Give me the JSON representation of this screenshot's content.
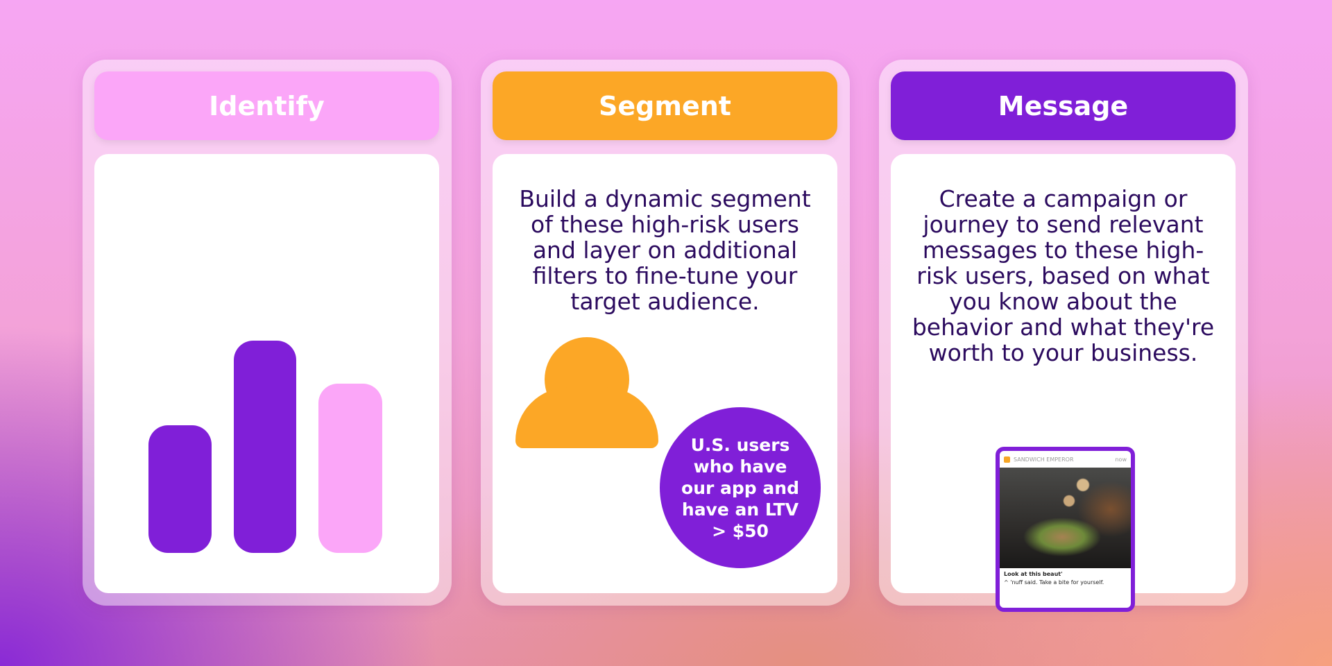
{
  "colors": {
    "pink": "#fba6f8",
    "orange": "#fca726",
    "purple": "#801fd8",
    "text": "#2b0a5e"
  },
  "cards": [
    {
      "title": "Identify",
      "chart_data": {
        "type": "bar",
        "values": [
          2,
          3,
          2.4
        ],
        "colors": [
          "#801fd8",
          "#801fd8",
          "#fba6f8"
        ]
      }
    },
    {
      "title": "Segment",
      "description": "Build a dynamic segment of these high-risk users and layer on additional filters to fine-tune your target audience.",
      "icon": "person-icon",
      "bubble": "U.S. users who have our app and have an LTV > $50"
    },
    {
      "title": "Message",
      "description": "Create a campaign or journey to send relevant messages to these high-risk users, based on what you know about the behavior and what they're worth to your business.",
      "notification": {
        "app": "SANDWICH EMPEROR",
        "time": "now",
        "title": "Look at this beaut'",
        "body": "^ 'nuff said. Take a bite for yourself."
      }
    }
  ]
}
